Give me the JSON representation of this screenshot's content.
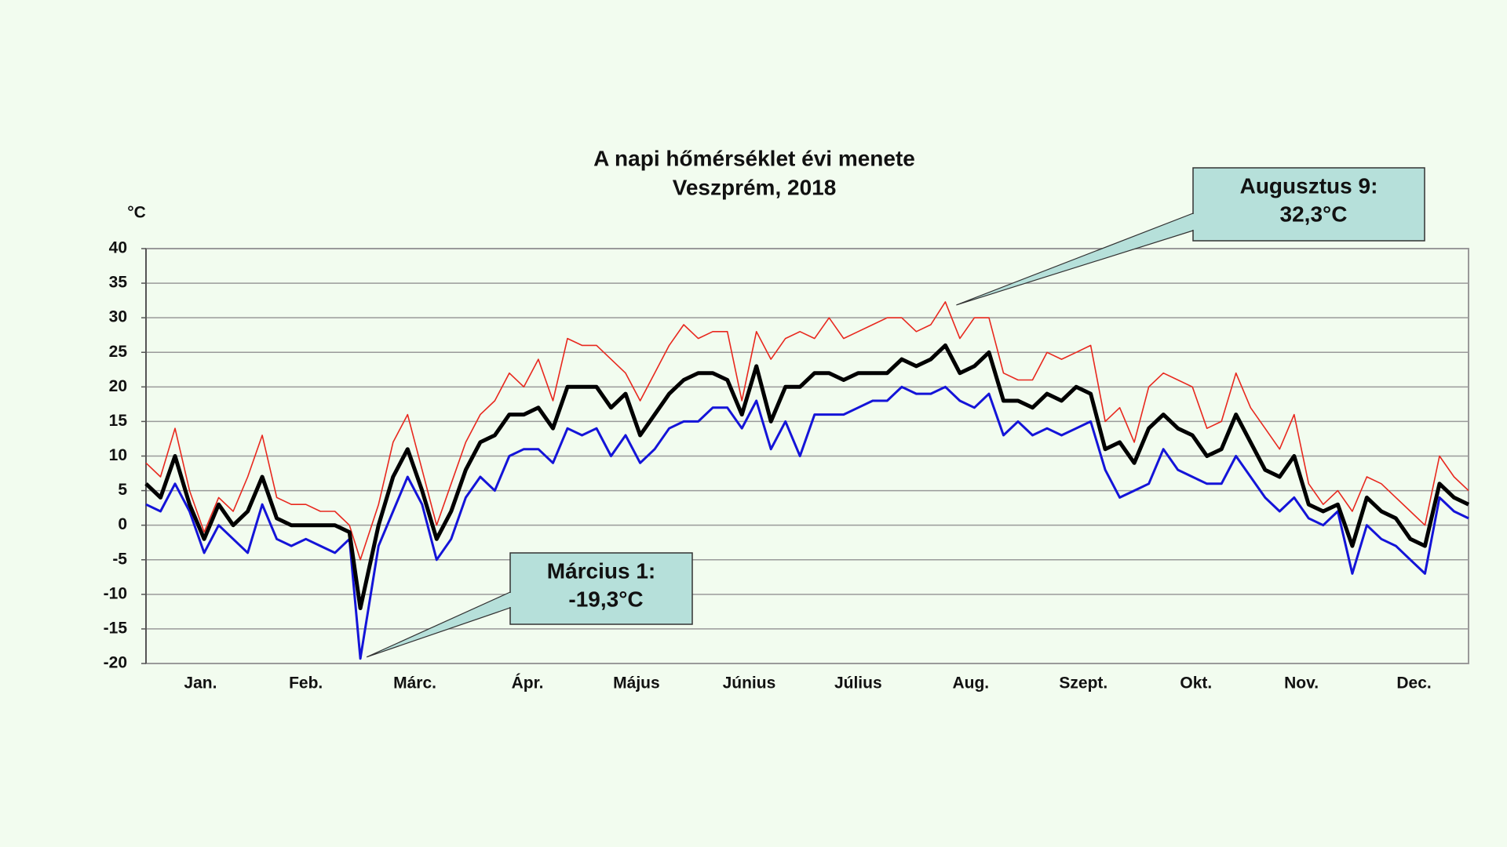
{
  "chart_data": {
    "type": "line",
    "title": "A napi hőmérséklet évi menete",
    "subtitle": "Veszprém, 2018",
    "ylabel": "°C",
    "x": [
      1,
      5,
      9,
      13,
      17,
      21,
      25,
      29,
      33,
      37,
      41,
      45,
      49,
      53,
      57,
      60,
      65,
      69,
      73,
      77,
      81,
      85,
      89,
      93,
      97,
      101,
      105,
      109,
      113,
      117,
      121,
      125,
      129,
      133,
      137,
      141,
      145,
      149,
      153,
      157,
      161,
      165,
      169,
      173,
      177,
      181,
      185,
      189,
      193,
      197,
      201,
      205,
      209,
      213,
      217,
      221,
      225,
      229,
      233,
      237,
      241,
      245,
      249,
      253,
      257,
      261,
      265,
      269,
      273,
      277,
      281,
      285,
      289,
      293,
      297,
      301,
      305,
      309,
      313,
      317,
      321,
      325,
      329,
      333,
      337,
      341,
      345,
      349,
      353,
      357,
      361,
      365
    ],
    "xlim": [
      1,
      365
    ],
    "xticks": [
      {
        "value": 16,
        "label": "Jan."
      },
      {
        "value": 45,
        "label": "Feb."
      },
      {
        "value": 75,
        "label": "Márc."
      },
      {
        "value": 106,
        "label": "Ápr."
      },
      {
        "value": 136,
        "label": "Május"
      },
      {
        "value": 167,
        "label": "Június"
      },
      {
        "value": 197,
        "label": "Július"
      },
      {
        "value": 228,
        "label": "Aug."
      },
      {
        "value": 259,
        "label": "Szept."
      },
      {
        "value": 290,
        "label": "Okt."
      },
      {
        "value": 319,
        "label": "Nov."
      },
      {
        "value": 350,
        "label": "Dec."
      }
    ],
    "ylim": [
      -20,
      40
    ],
    "yticks": [
      -20,
      -15,
      -10,
      -5,
      0,
      5,
      10,
      15,
      20,
      25,
      30,
      35,
      40
    ],
    "grid": true,
    "series": [
      {
        "color": "#e8281e",
        "values": [
          9,
          7,
          14,
          5,
          -1,
          4,
          2,
          7,
          13,
          4,
          3,
          3,
          2,
          2,
          0,
          -5,
          3,
          12,
          16,
          8,
          0,
          6,
          12,
          16,
          18,
          22,
          20,
          24,
          18,
          27,
          26,
          26,
          24,
          22,
          18,
          22,
          26,
          29,
          27,
          28,
          28,
          18,
          28,
          24,
          27,
          28,
          27,
          30,
          27,
          28,
          29,
          30,
          30,
          28,
          29,
          32.3,
          27,
          30,
          30,
          22,
          21,
          21,
          25,
          24,
          25,
          26,
          15,
          17,
          12,
          20,
          22,
          21,
          20,
          14,
          15,
          22,
          17,
          14,
          11,
          16,
          6,
          3,
          5,
          2,
          7,
          6,
          4,
          2,
          0,
          10,
          7,
          5
        ]
      },
      {
        "color": "#1414d8",
        "values": [
          3,
          2,
          6,
          2,
          -4,
          0,
          -2,
          -4,
          3,
          -2,
          -3,
          -2,
          -3,
          -4,
          -2,
          -19.3,
          -3,
          2,
          7,
          3,
          -5,
          -2,
          4,
          7,
          5,
          10,
          11,
          11,
          9,
          14,
          13,
          14,
          10,
          13,
          9,
          11,
          14,
          15,
          15,
          17,
          17,
          14,
          18,
          11,
          15,
          10,
          16,
          16,
          16,
          17,
          18,
          18,
          20,
          19,
          19,
          20,
          18,
          17,
          19,
          13,
          15,
          13,
          14,
          13,
          14,
          15,
          8,
          4,
          5,
          6,
          11,
          8,
          7,
          6,
          6,
          10,
          7,
          4,
          2,
          4,
          1,
          0,
          2,
          -7,
          0,
          -2,
          -3,
          -5,
          -7,
          4,
          2,
          1
        ]
      },
      {
        "color": "#000000",
        "values": [
          6,
          4,
          10,
          3,
          -2,
          3,
          0,
          2,
          7,
          1,
          0,
          0,
          0,
          0,
          -1,
          -12,
          0,
          7,
          11,
          5,
          -2,
          2,
          8,
          12,
          13,
          16,
          16,
          17,
          14,
          20,
          20,
          20,
          17,
          19,
          13,
          16,
          19,
          21,
          22,
          22,
          21,
          16,
          23,
          15,
          20,
          20,
          22,
          22,
          21,
          22,
          22,
          22,
          24,
          23,
          24,
          26,
          22,
          23,
          25,
          18,
          18,
          17,
          19,
          18,
          20,
          19,
          11,
          12,
          9,
          14,
          16,
          14,
          13,
          10,
          11,
          16,
          12,
          8,
          7,
          10,
          3,
          2,
          3,
          -3,
          4,
          2,
          1,
          -2,
          -3,
          6,
          4,
          3
        ]
      }
    ],
    "annotations": [
      {
        "text": [
          "Augusztus 9:",
          "32,3°C"
        ],
        "x": 221,
        "y": 32.3
      },
      {
        "text": [
          "Március 1:",
          "-19,3°C"
        ],
        "x": 60,
        "y": -19.3
      }
    ]
  }
}
